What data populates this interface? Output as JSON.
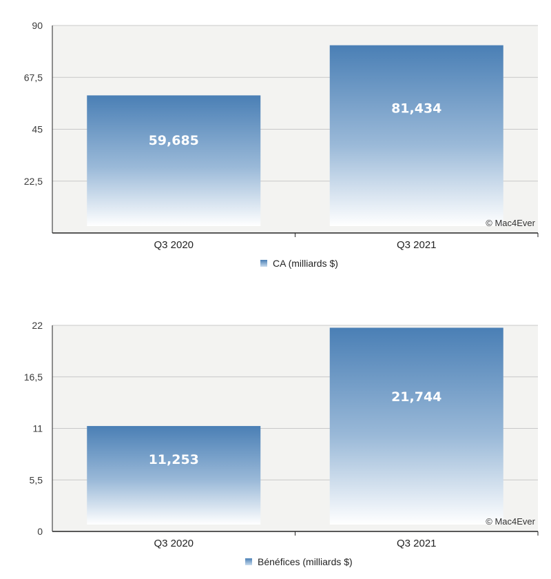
{
  "chart_data": [
    {
      "type": "bar",
      "categories": [
        "Q3 2020",
        "Q3 2021"
      ],
      "series": [
        {
          "name": "CA (milliards $)",
          "values": [
            59.685,
            81.434
          ]
        }
      ],
      "value_labels": [
        "59,685",
        "81,434"
      ],
      "ytick_labels": [
        "22,5",
        "45",
        "67,5",
        "90"
      ],
      "yticks": [
        22.5,
        45,
        67.5,
        90
      ],
      "ylim": [
        0,
        90
      ],
      "legend": "CA (milliards $)",
      "legend_position": "bottom",
      "grid": true,
      "watermark": "© Mac4Ever"
    },
    {
      "type": "bar",
      "categories": [
        "Q3 2020",
        "Q3 2021"
      ],
      "series": [
        {
          "name": "Bénéfices (milliards $)",
          "values": [
            11.253,
            21.744
          ]
        }
      ],
      "value_labels": [
        "11,253",
        "21,744"
      ],
      "ytick_labels": [
        "0",
        "5,5",
        "11",
        "16,5",
        "22"
      ],
      "yticks": [
        0,
        5.5,
        11,
        16.5,
        22
      ],
      "ylim": [
        0,
        22
      ],
      "legend": "Bénéfices (milliards $)",
      "legend_position": "bottom",
      "grid": true,
      "watermark": "© Mac4Ever"
    }
  ],
  "colors": {
    "bar_top": "#4a7fb5",
    "bar_bottom": "#ffffff",
    "grid": "#c8c8c8",
    "plot_bg": "#f3f3f1"
  }
}
